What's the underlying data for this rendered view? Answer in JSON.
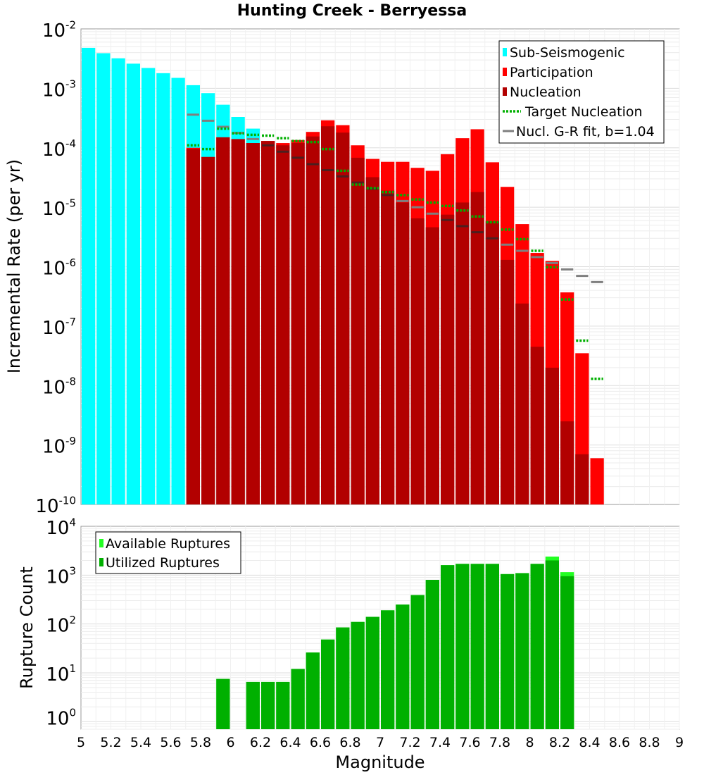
{
  "title": "Hunting Creek - Berryessa",
  "colors": {
    "sub": "#00ffff",
    "participation": "#ff0000",
    "nucleation": "#b20000",
    "target": "#00b000",
    "grfit": "#7f7f7f",
    "available": "#22ff22",
    "utilized": "#00b000"
  },
  "chart_data": [
    {
      "type": "bar",
      "title": "Hunting Creek - Berryessa",
      "xlabel": "Magnitude",
      "ylabel": "Incremental Rate (per yr)",
      "xlim": [
        5,
        9
      ],
      "ylim": [
        1e-10,
        0.01
      ],
      "yscale": "log",
      "grid": true,
      "legend_position": "top-right",
      "ytick_labels": [
        {
          "base": "10",
          "exp": "-10",
          "value": 1e-10
        },
        {
          "base": "10",
          "exp": "-9",
          "value": 1e-09
        },
        {
          "base": "10",
          "exp": "-8",
          "value": 1e-08
        },
        {
          "base": "10",
          "exp": "-7",
          "value": 1e-07
        },
        {
          "base": "10",
          "exp": "-6",
          "value": 1e-06
        },
        {
          "base": "10",
          "exp": "-5",
          "value": 1e-05
        },
        {
          "base": "10",
          "exp": "-4",
          "value": 0.0001
        },
        {
          "base": "10",
          "exp": "-3",
          "value": 0.001
        },
        {
          "base": "10",
          "exp": "-2",
          "value": 0.01
        }
      ],
      "legend": [
        {
          "label": "Sub-Seismogenic",
          "kind": "bar",
          "color": "#00ffff"
        },
        {
          "label": "Participation",
          "kind": "bar",
          "color": "#ff0000"
        },
        {
          "label": "Nucleation",
          "kind": "bar",
          "color": "#b20000"
        },
        {
          "label": "Target Nucleation",
          "kind": "dotted",
          "color": "#00b000"
        },
        {
          "label": "Nucl. G-R fit, b=1.04",
          "kind": "line",
          "color": "#7f7f7f"
        }
      ],
      "series": [
        {
          "name": "Sub-Seismogenic",
          "kind": "bar",
          "x": [
            5.05,
            5.15,
            5.25,
            5.35,
            5.45,
            5.55,
            5.65,
            5.75,
            5.85,
            5.95,
            6.05,
            6.15
          ],
          "values": [
            0.0048,
            0.0039,
            0.0032,
            0.0026,
            0.0022,
            0.0018,
            0.0015,
            0.00113,
            0.00083,
            0.00053,
            0.00033,
            0.00021
          ]
        },
        {
          "name": "Participation",
          "kind": "bar",
          "x": [
            5.75,
            5.85,
            5.95,
            6.05,
            6.15,
            6.25,
            6.35,
            6.45,
            6.55,
            6.65,
            6.75,
            6.85,
            6.95,
            7.05,
            7.15,
            7.25,
            7.35,
            7.45,
            7.55,
            7.65,
            7.75,
            7.85,
            7.95,
            8.05,
            8.15,
            8.25,
            8.35,
            8.45
          ],
          "values": [
            0.0001,
            7e-05,
            0.00015,
            0.00014,
            0.00012,
            0.00013,
            0.00012,
            0.000135,
            0.000185,
            0.00029,
            0.00024,
            0.00011,
            6.5e-05,
            5.8e-05,
            5.8e-05,
            4.6e-05,
            4.1e-05,
            7.8e-05,
            0.000145,
            0.000205,
            5.7e-05,
            2.2e-05,
            5.2e-06,
            1.7e-06,
            1.25e-06,
            3.7e-07,
            3.5e-08,
            6e-10
          ]
        },
        {
          "name": "Nucleation",
          "kind": "bar",
          "x": [
            5.75,
            5.85,
            5.95,
            6.05,
            6.15,
            6.25,
            6.35,
            6.45,
            6.55,
            6.65,
            6.75,
            6.85,
            6.95,
            7.05,
            7.15,
            7.25,
            7.35,
            7.45,
            7.55,
            7.65,
            7.75,
            7.85,
            7.95,
            8.05,
            8.15,
            8.25,
            8.35
          ],
          "values": [
            9.5e-05,
            7e-05,
            0.00015,
            0.00014,
            0.00012,
            0.00013,
            0.00011,
            0.00012,
            0.000155,
            0.00023,
            0.00018,
            6.8e-05,
            3.2e-05,
            1.9e-05,
            1.2e-05,
            6.5e-06,
            4.6e-06,
            7.5e-06,
            1.2e-05,
            1.8e-05,
            5.8e-06,
            1.3e-06,
            2.4e-07,
            4.5e-08,
            2e-08,
            2.5e-09,
            7e-10
          ]
        },
        {
          "name": "Target Nucleation",
          "kind": "dotted",
          "x": [
            5.75,
            5.85,
            5.95,
            6.05,
            6.15,
            6.25,
            6.35,
            6.45,
            6.55,
            6.65,
            6.75,
            6.85,
            6.95,
            7.05,
            7.15,
            7.25,
            7.35,
            7.45,
            7.55,
            7.65,
            7.75,
            7.85,
            7.95,
            8.05,
            8.15,
            8.25,
            8.35,
            8.45
          ],
          "values": [
            0.00011,
            9.5e-05,
            0.00021,
            0.000175,
            0.000165,
            0.00016,
            0.000145,
            0.00013,
            0.000125,
            9.5e-05,
            4.1e-05,
            2.4e-05,
            2.1e-05,
            1.8e-05,
            1.6e-05,
            1.35e-05,
            1.2e-05,
            1.05e-05,
            8.8e-06,
            7e-06,
            5.6e-06,
            4.2e-06,
            2.9e-06,
            1.85e-06,
            9.8e-07,
            2.8e-07,
            5.7e-08,
            1.3e-08
          ]
        },
        {
          "name": "Nucl. G-R fit, b=1.04",
          "kind": "line",
          "x": [
            5.75,
            5.85,
            5.95,
            6.05,
            6.15,
            6.25,
            6.35,
            6.45,
            6.55,
            6.65,
            6.75,
            6.85,
            6.95,
            7.05,
            7.15,
            7.25,
            7.35,
            7.45,
            7.55,
            7.65,
            7.75,
            7.85,
            7.95,
            8.05,
            8.15,
            8.25,
            8.35,
            8.45
          ],
          "values": [
            0.00036,
            0.000285,
            0.000225,
            0.000178,
            0.00014,
            0.00011,
            8.6e-05,
            6.8e-05,
            5.3e-05,
            4.2e-05,
            3.3e-05,
            2.6e-05,
            2.05e-05,
            1.6e-05,
            1.27e-05,
            1e-05,
            7.8e-06,
            6.1e-06,
            4.8e-06,
            3.8e-06,
            3e-06,
            2.35e-06,
            1.85e-06,
            1.45e-06,
            1.15e-06,
            9e-07,
            7e-07,
            5.5e-07
          ]
        }
      ]
    },
    {
      "type": "bar",
      "xlabel": "Magnitude",
      "ylabel": "Rupture Count",
      "xlim": [
        5,
        9
      ],
      "ylim": [
        0.7,
        10000
      ],
      "yscale": "log",
      "grid": true,
      "legend_position": "top-left",
      "xtick_labels": [
        "5",
        "5.2",
        "5.4",
        "5.6",
        "5.8",
        "6",
        "6.2",
        "6.4",
        "6.6",
        "6.8",
        "7",
        "7.2",
        "7.4",
        "7.6",
        "7.8",
        "8",
        "8.2",
        "8.4",
        "8.6",
        "8.8",
        "9"
      ],
      "ytick_labels": [
        {
          "base": "10",
          "exp": "0",
          "value": 1
        },
        {
          "base": "10",
          "exp": "1",
          "value": 10
        },
        {
          "base": "10",
          "exp": "2",
          "value": 100
        },
        {
          "base": "10",
          "exp": "3",
          "value": 1000
        },
        {
          "base": "10",
          "exp": "4",
          "value": 10000
        }
      ],
      "legend": [
        {
          "label": "Available Ruptures",
          "kind": "bar",
          "color": "#22ff22"
        },
        {
          "label": "Utilized Ruptures",
          "kind": "bar",
          "color": "#00b000"
        }
      ],
      "series": [
        {
          "name": "Available Ruptures",
          "kind": "bar",
          "x": [
            5.95,
            6.15,
            6.25,
            6.35,
            6.45,
            6.55,
            6.65,
            6.75,
            6.85,
            6.95,
            7.05,
            7.15,
            7.25,
            7.35,
            7.45,
            7.55,
            7.65,
            7.75,
            7.85,
            7.95,
            8.05,
            8.15,
            8.25
          ],
          "values": [
            7.5,
            6.5,
            6.5,
            6.5,
            12,
            26,
            48,
            85,
            110,
            140,
            190,
            250,
            390,
            800,
            1600,
            1700,
            1700,
            1700,
            1050,
            1100,
            1700,
            2400,
            1150
          ]
        },
        {
          "name": "Utilized Ruptures",
          "kind": "bar",
          "x": [
            5.95,
            6.15,
            6.25,
            6.35,
            6.45,
            6.55,
            6.65,
            6.75,
            6.85,
            6.95,
            7.05,
            7.15,
            7.25,
            7.35,
            7.45,
            7.55,
            7.65,
            7.75,
            7.85,
            7.95,
            8.05,
            8.15,
            8.25
          ],
          "values": [
            7.5,
            6.5,
            6.5,
            6.5,
            12,
            26,
            48,
            85,
            110,
            140,
            190,
            250,
            390,
            800,
            1600,
            1700,
            1700,
            1700,
            1050,
            1100,
            1700,
            2000,
            950
          ]
        }
      ]
    }
  ]
}
